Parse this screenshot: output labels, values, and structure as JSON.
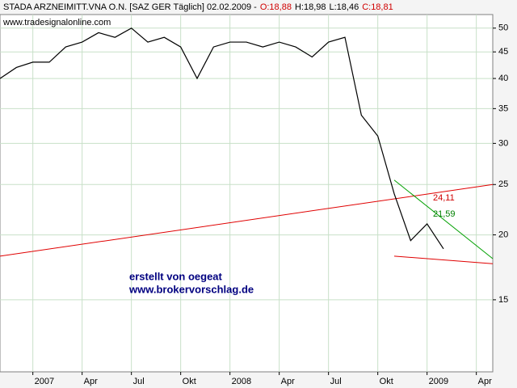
{
  "header": {
    "title": "STADA ARZNEIMITT.VNA O.N. [SAZ GER  Täglich] 02.02.2009 -",
    "ohlc": [
      "O:18,88",
      "H:18,98",
      "L:18,46",
      "C:18,81"
    ],
    "ohlc_colors": [
      "#d00000",
      "#000000",
      "#000000",
      "#d00000"
    ]
  },
  "chart_data": {
    "type": "line",
    "log_scale": true,
    "grid": true,
    "x": [
      "2006-11",
      "2006-12",
      "2007-01",
      "2007-02",
      "2007-03",
      "2007-04",
      "2007-05",
      "2007-06",
      "2007-07",
      "2007-08",
      "2007-09",
      "2007-10",
      "2007-11",
      "2007-12",
      "2008-01",
      "2008-02",
      "2008-03",
      "2008-04",
      "2008-05",
      "2008-06",
      "2008-07",
      "2008-08",
      "2008-09",
      "2008-10",
      "2008-11",
      "2008-12",
      "2009-01",
      "2009-02"
    ],
    "series": [
      {
        "name": "SAZ GER",
        "color": "#000000",
        "values": [
          40,
          42,
          43,
          43,
          46,
          47,
          49,
          48,
          50,
          47,
          48,
          46,
          40,
          46,
          47,
          47,
          46,
          47,
          46,
          44,
          47,
          48,
          34,
          31,
          24,
          19.5,
          21,
          18.8
        ]
      }
    ],
    "xlim": [
      "2006-11",
      "2009-05"
    ],
    "xticks": [
      {
        "value": "2007-01",
        "label": "2007"
      },
      {
        "value": "2007-04",
        "label": "Apr"
      },
      {
        "value": "2007-07",
        "label": "Jul"
      },
      {
        "value": "2007-10",
        "label": "Okt"
      },
      {
        "value": "2008-01",
        "label": "2008"
      },
      {
        "value": "2008-04",
        "label": "Apr"
      },
      {
        "value": "2008-07",
        "label": "Jul"
      },
      {
        "value": "2008-10",
        "label": "Okt"
      },
      {
        "value": "2009-01",
        "label": "2009"
      },
      {
        "value": "2009-04",
        "label": "Apr"
      }
    ],
    "ylim": [
      10.9,
      53.1
    ],
    "yticks": [
      15,
      20,
      25,
      30,
      35,
      40,
      45,
      50
    ],
    "trendlines": [
      {
        "color": "#e00000",
        "points": [
          [
            "2006-11",
            18.2
          ],
          [
            "2009-05",
            25
          ]
        ]
      },
      {
        "color": "#00a000",
        "points": [
          [
            "2008-11",
            25.5
          ],
          [
            "2009-05",
            18
          ]
        ]
      },
      {
        "color": "#e00000",
        "points": [
          [
            "2008-11",
            18.2
          ],
          [
            "2009-05",
            17.6
          ]
        ]
      }
    ],
    "annotations": [
      {
        "text": "www.tradesignalonline.com",
        "color": "#000000"
      },
      {
        "text": "erstellt von oegeat",
        "color": "#000080"
      },
      {
        "text": "www.brokervorschlag.de",
        "color": "#000080"
      },
      {
        "text": "24,11",
        "color": "#d00000"
      },
      {
        "text": "21,59",
        "color": "#008000"
      }
    ]
  }
}
